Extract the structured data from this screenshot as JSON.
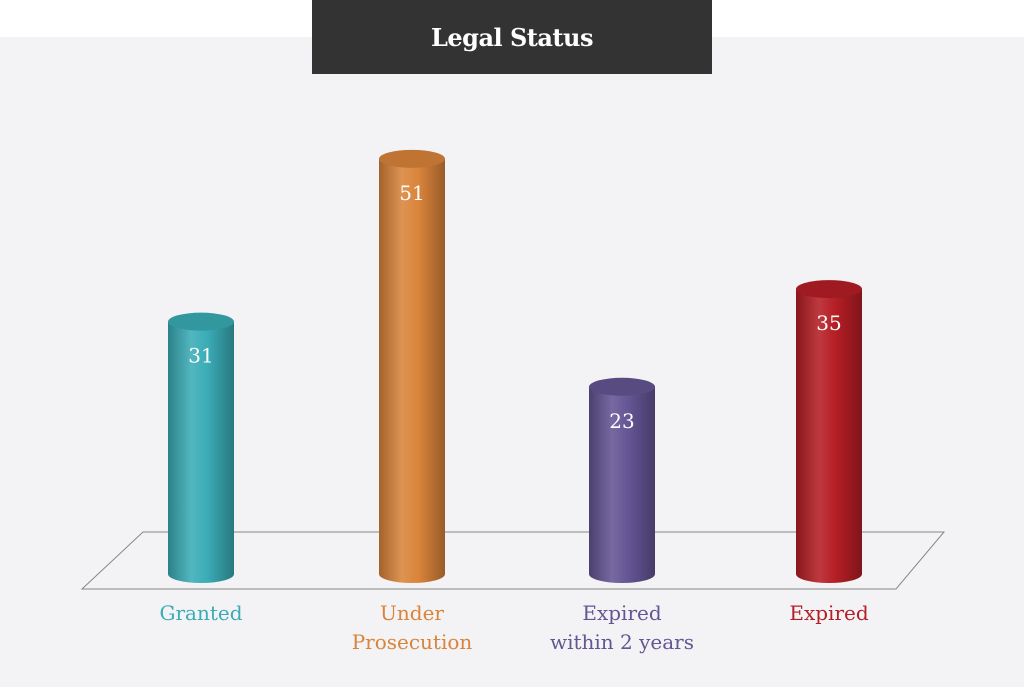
{
  "title": "Legal Status",
  "colors": {
    "header_background": "#333333",
    "panel_background": "#f3f2f4"
  },
  "chart_data": {
    "type": "bar",
    "title": "Legal Status",
    "categories": [
      [
        "Granted"
      ],
      [
        "Under",
        "Prosecution"
      ],
      [
        "Expired",
        "within 2 years"
      ],
      [
        "Expired"
      ]
    ],
    "values": [
      31,
      51,
      23,
      35
    ],
    "data_labels": [
      "31",
      "51",
      "23",
      "35"
    ],
    "colors": [
      "#3aacb6",
      "#d9843a",
      "#645594",
      "#b51e25"
    ],
    "style": "3d-cylinder",
    "grid": false,
    "legend": "none"
  }
}
